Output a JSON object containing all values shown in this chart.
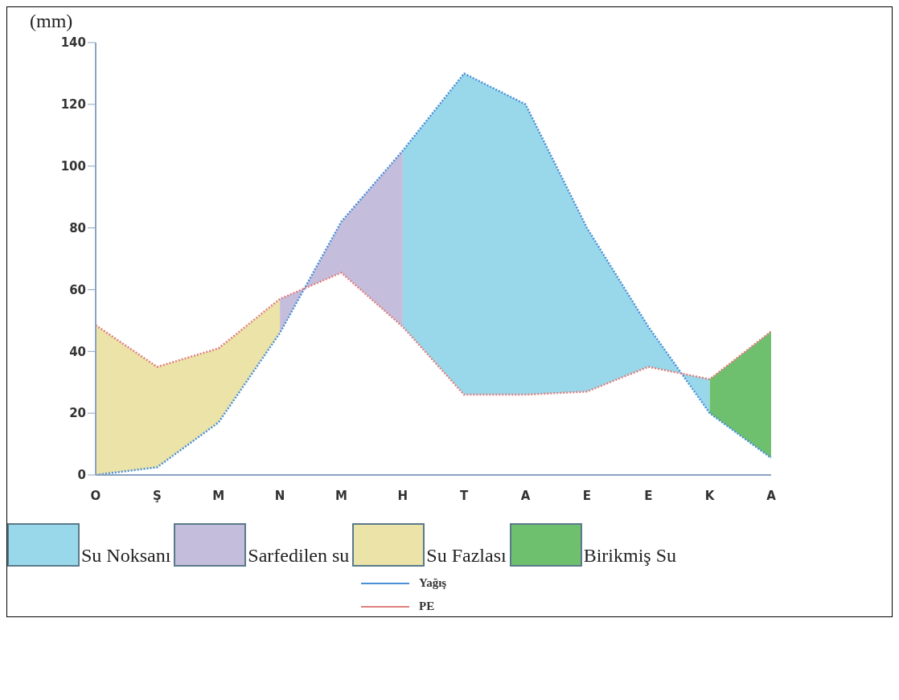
{
  "chart_data": {
    "type": "line",
    "ylabel": "(mm)",
    "categories": [
      "O",
      "Ş",
      "M",
      "N",
      "M",
      "H",
      "T",
      "A",
      "E",
      "E",
      "K",
      "A"
    ],
    "ylim": [
      0,
      140
    ],
    "yticks": [
      0,
      20,
      40,
      60,
      80,
      100,
      120,
      140
    ],
    "grid": false,
    "legend": "bottom",
    "marker": "none",
    "series": [
      {
        "name": "Su Noksanı",
        "type": "area",
        "color": "#99d8ea",
        "values": [
          null,
          null,
          null,
          null,
          null,
          105,
          130,
          120,
          80,
          48,
          20,
          null
        ]
      },
      {
        "name": "Sarfedilen su",
        "type": "area",
        "color": "#c5bddc",
        "values": [
          null,
          null,
          null,
          46,
          82,
          105,
          null,
          null,
          null,
          null,
          null,
          null
        ]
      },
      {
        "name": "Su Fazlası",
        "type": "area",
        "color": "#ebe3a8",
        "values": [
          48.5,
          35,
          41,
          57,
          null,
          null,
          null,
          null,
          null,
          null,
          null,
          null
        ]
      },
      {
        "name": "Birikmiş Su",
        "type": "area",
        "color": "#6ec06e",
        "values": [
          null,
          null,
          null,
          null,
          null,
          null,
          null,
          null,
          null,
          null,
          31,
          46.5
        ]
      },
      {
        "name": "Yağış",
        "color": "#4a90d9",
        "line_style": "dotted",
        "values": [
          0,
          2.5,
          17,
          46,
          82,
          105,
          130,
          120,
          80,
          48,
          20,
          5.5
        ]
      },
      {
        "name": "PE",
        "color": "#e08080",
        "line_style": "dotted",
        "values": [
          48.5,
          35,
          41,
          57,
          65.5,
          48,
          26,
          26,
          27,
          35,
          31,
          46.5
        ]
      }
    ]
  }
}
